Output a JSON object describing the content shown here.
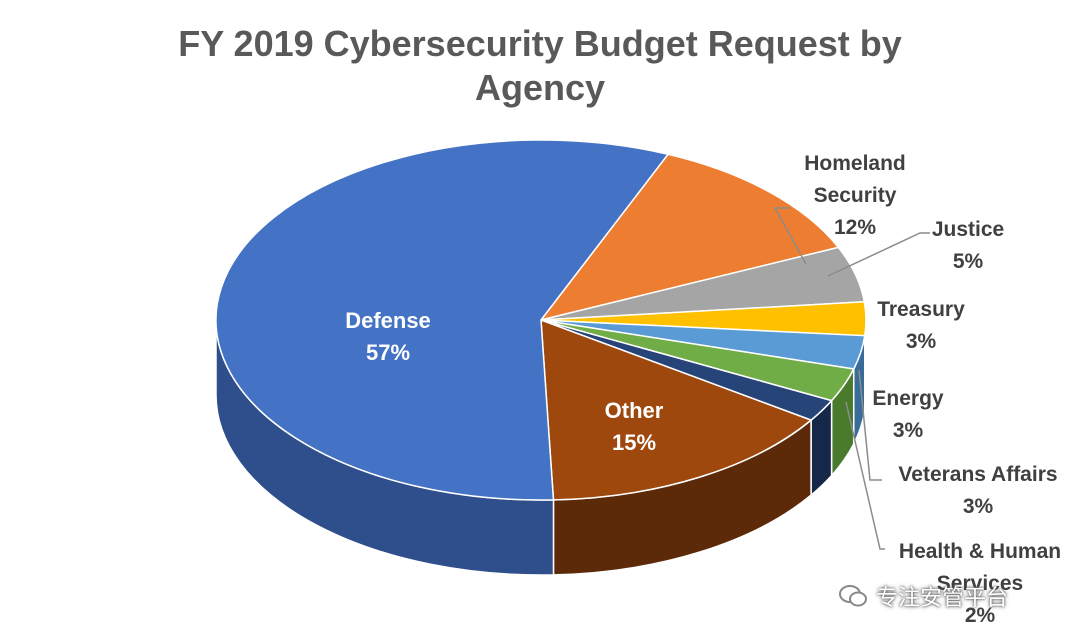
{
  "chart_data": {
    "type": "pie",
    "title_lines": [
      "FY 2019 Cybersecurity Budget Request by",
      "Agency"
    ],
    "slices": [
      {
        "name": "Homeland Security",
        "label_lines": [
          "Homeland",
          "Security",
          "12%"
        ],
        "value": 12,
        "color": "#ED7D31",
        "side_color": "#A9521C"
      },
      {
        "name": "Justice",
        "label_lines": [
          "Justice",
          "5%"
        ],
        "value": 5,
        "color": "#A5A5A5",
        "side_color": "#6F6F6F"
      },
      {
        "name": "Treasury",
        "label_lines": [
          "Treasury",
          "3%"
        ],
        "value": 3,
        "color": "#FFC000",
        "side_color": "#B48800"
      },
      {
        "name": "Veterans Affairs",
        "label_lines": [
          "Veterans Affairs",
          "3%"
        ],
        "value": 3,
        "color": "#5B9BD5",
        "side_color": "#3A6C99"
      },
      {
        "name": "Energy",
        "label_lines": [
          "Energy",
          "3%"
        ],
        "value": 3,
        "color": "#70AD47",
        "side_color": "#4A7A2C"
      },
      {
        "name": "Health & Human Services",
        "label_lines": [
          "Health & Human",
          "Services",
          "2%"
        ],
        "value": 2,
        "color": "#264478",
        "side_color": "#16284A"
      },
      {
        "name": "Other",
        "label_lines": [
          "Other",
          "15%"
        ],
        "value": 15,
        "color": "#9E480E",
        "side_color": "#5C2A08"
      },
      {
        "name": "Defense",
        "label_lines": [
          "Defense",
          "57%"
        ],
        "value": 57,
        "color": "#4472C4",
        "side_color": "#2E4F8C"
      }
    ],
    "legend": "none",
    "data_labels": "category name and percentage"
  },
  "watermark": {
    "text": "专注安管平台",
    "icon": "wechat-icon"
  }
}
